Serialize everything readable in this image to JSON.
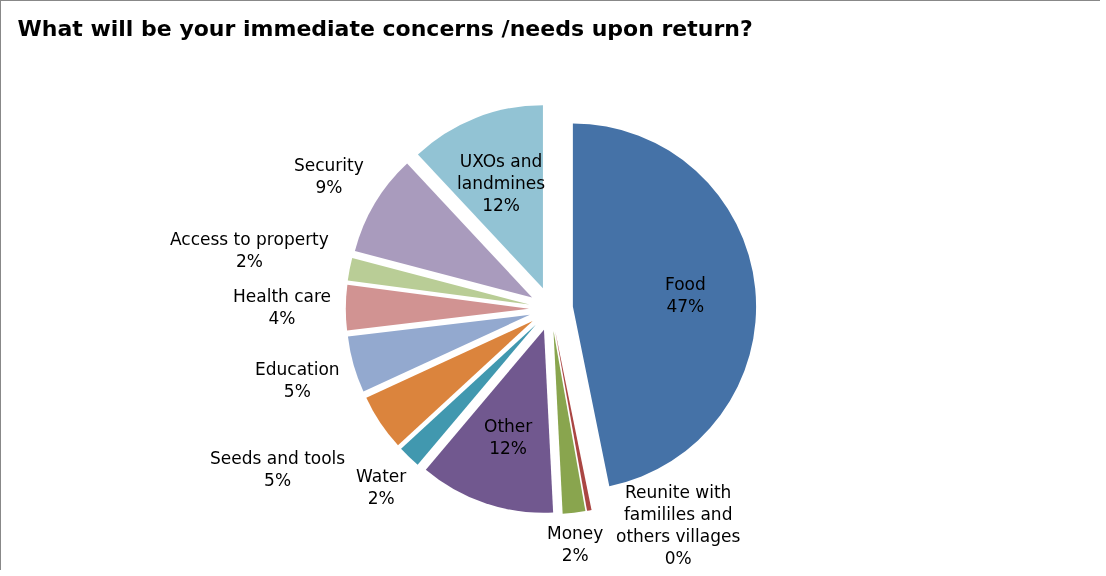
{
  "chart_data": {
    "type": "pie",
    "title": "What will be your immediate concerns /needs upon return?",
    "categories": [
      "Food",
      "Reunite with famililes and others villages",
      "Money",
      "Other",
      "Water",
      "Seeds and tools",
      "Education",
      "Health care",
      "Access to property",
      "Security",
      "UXOs and landmines"
    ],
    "values": [
      47,
      0.4,
      2,
      12,
      2,
      5,
      5,
      4,
      2,
      9,
      12
    ],
    "value_labels": [
      "47%",
      "0%",
      "2%",
      "12%",
      "2%",
      "5%",
      "5%",
      "4%",
      "2%",
      "9%",
      "12%"
    ],
    "colors": [
      "#4572a7",
      "#aa4643",
      "#89a54e",
      "#71588f",
      "#4198af",
      "#db843d",
      "#93a9cf",
      "#d19392",
      "#b9cd96",
      "#a99bbd",
      "#92c3d4"
    ],
    "legend": false
  }
}
